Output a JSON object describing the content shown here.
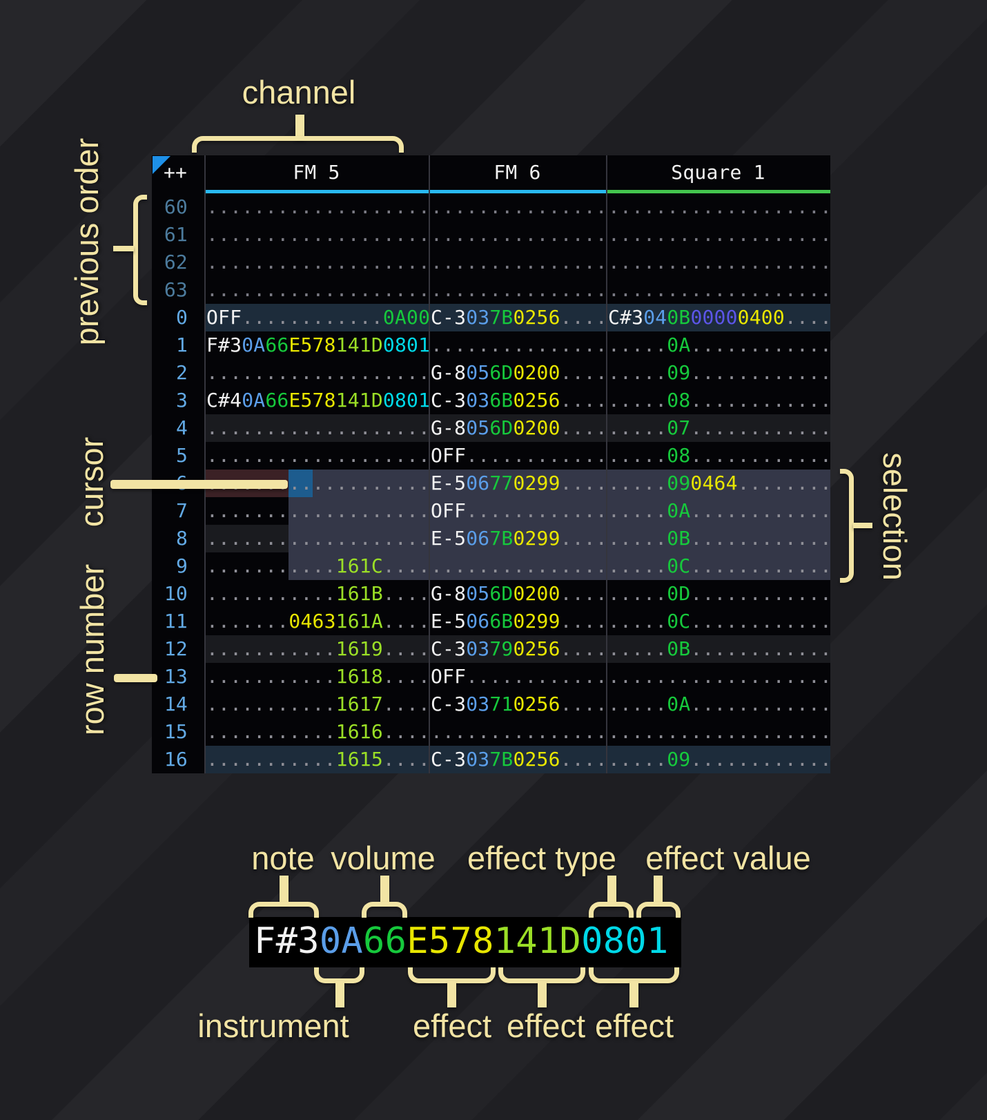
{
  "palette": {
    "annotation": "#f2e4a4",
    "table-bg": "#040407",
    "note": "#f2f2f2",
    "instrument": "#5b9ee9",
    "volume": "#16c93c",
    "fx-yellow": "#e8e600",
    "fx-lime": "#9bdf26",
    "fx-cyan": "#00d9e8",
    "fx-purple": "#5c55e8",
    "dots": "#8e8e96",
    "dots-prev": "#7b7b84",
    "rownum": "#62a9e4",
    "rownum-prev": "#4c7b9d",
    "channel-fm": "#29b9f2",
    "channel-square": "#44c54e",
    "row-order-bg": "#1d2c3b",
    "row-alt-bg": "#1a1b1f",
    "selection-bg": "#343748",
    "cursor-row-bg": "#3b2125",
    "cursor-bg": "#1d5c8e",
    "separator": "#35353d",
    "triangle": "#1e90e8"
  },
  "annotations": {
    "channel": "channel",
    "previous_order": "previous order",
    "cursor": "cursor",
    "row_number": "row number",
    "selection": "selection",
    "note": "note",
    "volume": "volume",
    "effect_type": "effect type",
    "effect_value": "effect value",
    "instrument": "instrument",
    "effect_a": "effect",
    "effect_b": "effect",
    "effect_c": "effect"
  },
  "header": {
    "order_label": "++",
    "channels": [
      {
        "name": "FM 5",
        "kind": "fm"
      },
      {
        "name": "FM 6",
        "kind": "fm"
      },
      {
        "name": "Square 1",
        "kind": "square"
      }
    ]
  },
  "zoom_cell": {
    "segments": [
      [
        "F#3",
        "n"
      ],
      [
        "0A",
        "i"
      ],
      [
        "66",
        "v"
      ],
      [
        "E578",
        "y"
      ],
      [
        "141D",
        "l"
      ],
      [
        "0801",
        "c"
      ]
    ]
  },
  "pattern": {
    "rows": [
      {
        "num": "60",
        "type": "prev",
        "fm5": [
          [
            "...................",
            "d"
          ]
        ],
        "fm6": [
          [
            "...............",
            "d"
          ]
        ],
        "sq": [
          [
            "...................",
            "d"
          ]
        ]
      },
      {
        "num": "61",
        "type": "prev",
        "fm5": [
          [
            "...................",
            "d"
          ]
        ],
        "fm6": [
          [
            "...............",
            "d"
          ]
        ],
        "sq": [
          [
            "...................",
            "d"
          ]
        ]
      },
      {
        "num": "62",
        "type": "prev",
        "fm5": [
          [
            "...................",
            "d"
          ]
        ],
        "fm6": [
          [
            "...............",
            "d"
          ]
        ],
        "sq": [
          [
            "...................",
            "d"
          ]
        ]
      },
      {
        "num": "63",
        "type": "prev",
        "fm5": [
          [
            "...................",
            "d"
          ]
        ],
        "fm6": [
          [
            "...............",
            "d"
          ]
        ],
        "sq": [
          [
            "...................",
            "d"
          ]
        ]
      },
      {
        "num": "0",
        "type": "order",
        "fm5": [
          [
            "OFF",
            "n"
          ],
          [
            "............",
            "d"
          ],
          [
            "0A00",
            "v"
          ]
        ],
        "fm6": [
          [
            "C-3",
            "n"
          ],
          [
            "03",
            "i"
          ],
          [
            "7B",
            "v"
          ],
          [
            "0256",
            "y"
          ],
          [
            "....",
            "d"
          ]
        ],
        "sq": [
          [
            "C#3",
            "n"
          ],
          [
            "04",
            "i"
          ],
          [
            "0B",
            "v"
          ],
          [
            "0000",
            "p"
          ],
          [
            "0400",
            "y"
          ],
          [
            "....",
            "d"
          ]
        ]
      },
      {
        "num": "1",
        "type": "",
        "fm5": [
          [
            "F#3",
            "n"
          ],
          [
            "0A",
            "i"
          ],
          [
            "66",
            "v"
          ],
          [
            "E578",
            "y"
          ],
          [
            "141D",
            "l"
          ],
          [
            "0801",
            "c"
          ]
        ],
        "fm6": [
          [
            "...............",
            "d"
          ]
        ],
        "sq": [
          [
            ".....",
            "d"
          ],
          [
            "0A",
            "v"
          ],
          [
            "............",
            "d"
          ]
        ]
      },
      {
        "num": "2",
        "type": "",
        "fm5": [
          [
            "...................",
            "d"
          ]
        ],
        "fm6": [
          [
            "G-8",
            "n"
          ],
          [
            "05",
            "i"
          ],
          [
            "6D",
            "v"
          ],
          [
            "0200",
            "y"
          ],
          [
            "....",
            "d"
          ]
        ],
        "sq": [
          [
            ".....",
            "d"
          ],
          [
            "09",
            "v"
          ],
          [
            "............",
            "d"
          ]
        ]
      },
      {
        "num": "3",
        "type": "",
        "fm5": [
          [
            "C#4",
            "n"
          ],
          [
            "0A",
            "i"
          ],
          [
            "66",
            "v"
          ],
          [
            "E578",
            "y"
          ],
          [
            "141D",
            "l"
          ],
          [
            "0801",
            "c"
          ]
        ],
        "fm6": [
          [
            "C-3",
            "n"
          ],
          [
            "03",
            "i"
          ],
          [
            "6B",
            "v"
          ],
          [
            "0256",
            "y"
          ],
          [
            "....",
            "d"
          ]
        ],
        "sq": [
          [
            ".....",
            "d"
          ],
          [
            "08",
            "v"
          ],
          [
            "............",
            "d"
          ]
        ]
      },
      {
        "num": "4",
        "type": "alt",
        "fm5": [
          [
            "...................",
            "d"
          ]
        ],
        "fm6": [
          [
            "G-8",
            "n"
          ],
          [
            "05",
            "i"
          ],
          [
            "6D",
            "v"
          ],
          [
            "0200",
            "y"
          ],
          [
            "....",
            "d"
          ]
        ],
        "sq": [
          [
            ".....",
            "d"
          ],
          [
            "07",
            "v"
          ],
          [
            "............",
            "d"
          ]
        ]
      },
      {
        "num": "5",
        "type": "",
        "fm5": [
          [
            "...................",
            "d"
          ]
        ],
        "fm6": [
          [
            "OFF",
            "n"
          ],
          [
            "............",
            "d"
          ]
        ],
        "sq": [
          [
            ".....",
            "d"
          ],
          [
            "08",
            "v"
          ],
          [
            "............",
            "d"
          ]
        ]
      },
      {
        "num": "6",
        "type": "",
        "fm5": [
          [
            "...................",
            "d"
          ]
        ],
        "fm6": [
          [
            "E-5",
            "n"
          ],
          [
            "06",
            "i"
          ],
          [
            "77",
            "v"
          ],
          [
            "0299",
            "y"
          ],
          [
            "....",
            "d"
          ]
        ],
        "sq": [
          [
            ".....",
            "d"
          ],
          [
            "09",
            "v"
          ],
          [
            "0464",
            "y"
          ],
          [
            "........",
            "d"
          ]
        ]
      },
      {
        "num": "7",
        "type": "",
        "fm5": [
          [
            "...................",
            "d"
          ]
        ],
        "fm6": [
          [
            "OFF",
            "n"
          ],
          [
            "............",
            "d"
          ]
        ],
        "sq": [
          [
            ".....",
            "d"
          ],
          [
            "0A",
            "v"
          ],
          [
            "............",
            "d"
          ]
        ]
      },
      {
        "num": "8",
        "type": "alt",
        "fm5": [
          [
            "...................",
            "d"
          ]
        ],
        "fm6": [
          [
            "E-5",
            "n"
          ],
          [
            "06",
            "i"
          ],
          [
            "7B",
            "v"
          ],
          [
            "0299",
            "y"
          ],
          [
            "....",
            "d"
          ]
        ],
        "sq": [
          [
            ".....",
            "d"
          ],
          [
            "0B",
            "v"
          ],
          [
            "............",
            "d"
          ]
        ]
      },
      {
        "num": "9",
        "type": "",
        "fm5": [
          [
            "...........",
            "d"
          ],
          [
            "161C",
            "l"
          ],
          [
            "....",
            "d"
          ]
        ],
        "fm6": [
          [
            "...............",
            "d"
          ]
        ],
        "sq": [
          [
            ".....",
            "d"
          ],
          [
            "0C",
            "v"
          ],
          [
            "............",
            "d"
          ]
        ]
      },
      {
        "num": "10",
        "type": "",
        "fm5": [
          [
            "...........",
            "d"
          ],
          [
            "161B",
            "l"
          ],
          [
            "....",
            "d"
          ]
        ],
        "fm6": [
          [
            "G-8",
            "n"
          ],
          [
            "05",
            "i"
          ],
          [
            "6D",
            "v"
          ],
          [
            "0200",
            "y"
          ],
          [
            "....",
            "d"
          ]
        ],
        "sq": [
          [
            ".....",
            "d"
          ],
          [
            "0D",
            "v"
          ],
          [
            "............",
            "d"
          ]
        ]
      },
      {
        "num": "11",
        "type": "",
        "fm5": [
          [
            ".......",
            "d"
          ],
          [
            "0463",
            "y"
          ],
          [
            "161A",
            "l"
          ],
          [
            "....",
            "d"
          ]
        ],
        "fm6": [
          [
            "E-5",
            "n"
          ],
          [
            "06",
            "i"
          ],
          [
            "6B",
            "v"
          ],
          [
            "0299",
            "y"
          ],
          [
            "....",
            "d"
          ]
        ],
        "sq": [
          [
            ".....",
            "d"
          ],
          [
            "0C",
            "v"
          ],
          [
            "............",
            "d"
          ]
        ]
      },
      {
        "num": "12",
        "type": "alt",
        "fm5": [
          [
            "...........",
            "d"
          ],
          [
            "1619",
            "l"
          ],
          [
            "....",
            "d"
          ]
        ],
        "fm6": [
          [
            "C-3",
            "n"
          ],
          [
            "03",
            "i"
          ],
          [
            "79",
            "v"
          ],
          [
            "0256",
            "y"
          ],
          [
            "....",
            "d"
          ]
        ],
        "sq": [
          [
            ".....",
            "d"
          ],
          [
            "0B",
            "v"
          ],
          [
            "............",
            "d"
          ]
        ]
      },
      {
        "num": "13",
        "type": "",
        "fm5": [
          [
            "...........",
            "d"
          ],
          [
            "1618",
            "l"
          ],
          [
            "....",
            "d"
          ]
        ],
        "fm6": [
          [
            "OFF",
            "n"
          ],
          [
            "............",
            "d"
          ]
        ],
        "sq": [
          [
            "...................",
            "d"
          ]
        ]
      },
      {
        "num": "14",
        "type": "",
        "fm5": [
          [
            "...........",
            "d"
          ],
          [
            "1617",
            "l"
          ],
          [
            "....",
            "d"
          ]
        ],
        "fm6": [
          [
            "C-3",
            "n"
          ],
          [
            "03",
            "i"
          ],
          [
            "71",
            "v"
          ],
          [
            "0256",
            "y"
          ],
          [
            "....",
            "d"
          ]
        ],
        "sq": [
          [
            ".....",
            "d"
          ],
          [
            "0A",
            "v"
          ],
          [
            "............",
            "d"
          ]
        ]
      },
      {
        "num": "15",
        "type": "",
        "fm5": [
          [
            "...........",
            "d"
          ],
          [
            "1616",
            "l"
          ],
          [
            "....",
            "d"
          ]
        ],
        "fm6": [
          [
            "...............",
            "d"
          ]
        ],
        "sq": [
          [
            "...................",
            "d"
          ]
        ]
      },
      {
        "num": "16",
        "type": "order",
        "fm5": [
          [
            "...........",
            "d"
          ],
          [
            "1615",
            "l"
          ],
          [
            "....",
            "d"
          ]
        ],
        "fm6": [
          [
            "C-3",
            "n"
          ],
          [
            "03",
            "i"
          ],
          [
            "7B",
            "v"
          ],
          [
            "0256",
            "y"
          ],
          [
            "....",
            "d"
          ]
        ],
        "sq": [
          [
            ".....",
            "d"
          ],
          [
            "09",
            "v"
          ],
          [
            "............",
            "d"
          ]
        ]
      }
    ]
  }
}
